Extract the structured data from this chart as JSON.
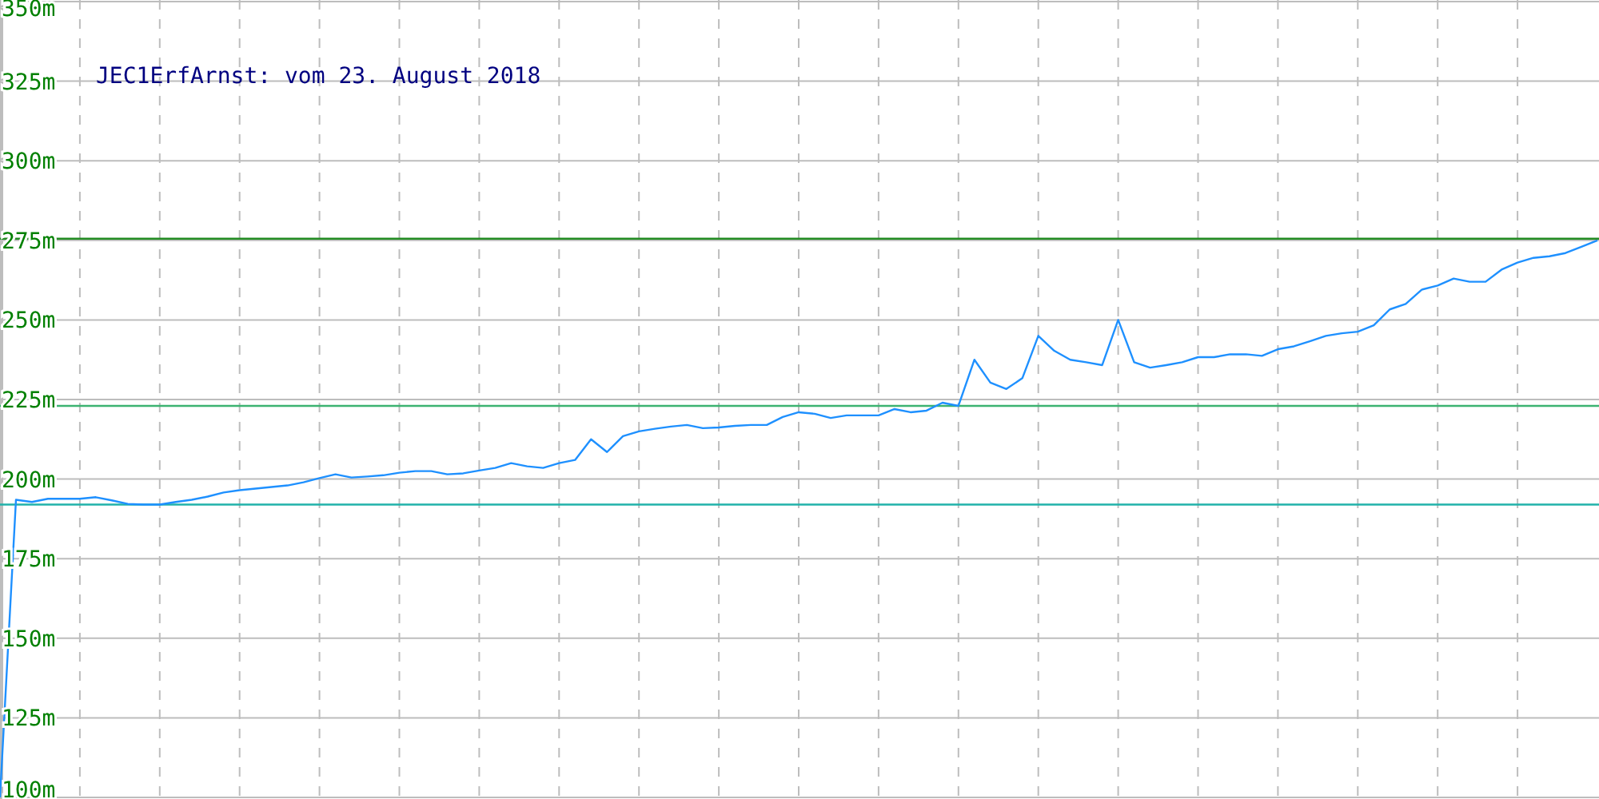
{
  "chart_data": {
    "type": "line",
    "title": "JEC1ErfArnst: vom 23. August 2018",
    "categories": [
      null,
      null,
      null,
      null,
      null,
      null,
      null,
      null,
      null,
      null,
      null,
      null,
      null,
      null,
      null,
      null,
      null,
      null,
      null,
      null,
      null,
      null,
      null,
      null,
      null,
      null,
      null,
      null,
      null,
      null,
      null,
      null,
      null,
      null,
      null,
      null,
      null,
      null,
      null,
      null,
      null,
      null,
      null,
      null,
      null,
      null,
      null,
      null,
      null,
      null,
      null,
      null,
      null,
      null,
      null,
      null,
      null,
      null,
      null,
      null,
      null,
      null,
      null,
      null,
      null,
      null,
      null,
      null,
      null,
      null,
      null,
      null,
      null,
      null,
      null,
      null,
      null,
      null,
      null,
      null,
      null,
      null,
      null,
      null,
      null,
      null,
      null,
      null,
      null,
      null,
      null,
      null,
      null,
      null,
      null,
      null,
      null,
      null,
      null,
      null,
      null
    ],
    "series": [
      {
        "color": "#1e90ff",
        "values": [
          100,
          193.5,
          192.8,
          193.8,
          193.8,
          193.8,
          194.3,
          193.3,
          192.2,
          192,
          192,
          192.8,
          193.5,
          194.5,
          195.8,
          196.5,
          197,
          197.5,
          198,
          199,
          200.3,
          201.5,
          200.5,
          200.8,
          201.2,
          202,
          202.5,
          202.5,
          201.5,
          201.8,
          202.7,
          203.5,
          205,
          204,
          203.5,
          205,
          206,
          212.5,
          208.5,
          213.5,
          215,
          215.8,
          216.5,
          217,
          216,
          216.2,
          216.7,
          217,
          217,
          219.5,
          221,
          220.5,
          219.2,
          220,
          220,
          220,
          222,
          221,
          221.5,
          224,
          223,
          237.5,
          230.3,
          228.3,
          231.7,
          245,
          240.3,
          237.5,
          236.7,
          235.8,
          250,
          236.7,
          235,
          235.8,
          236.7,
          238.3,
          238.3,
          239.2,
          239.2,
          238.7,
          240.8,
          241.7,
          243.3,
          245,
          245.8,
          246.3,
          248.3,
          253.3,
          255,
          259.5,
          260.8,
          263,
          262,
          262,
          265.8,
          268,
          269.5,
          270,
          271,
          273,
          275
        ]
      }
    ],
    "ylim": [
      100,
      350
    ],
    "yticks": [
      {
        "value": 100,
        "label": "100m"
      },
      {
        "value": 125,
        "label": "125m"
      },
      {
        "value": 150,
        "label": "150m"
      },
      {
        "value": 175,
        "label": "175m"
      },
      {
        "value": 200,
        "label": "200m"
      },
      {
        "value": 225,
        "label": "225m"
      },
      {
        "value": 250,
        "label": "250m"
      },
      {
        "value": 275,
        "label": "275m"
      },
      {
        "value": 300,
        "label": "300m"
      },
      {
        "value": 325,
        "label": "325m"
      },
      {
        "value": 350,
        "label": "350m"
      }
    ],
    "grid": true,
    "ref_lines": [
      {
        "axis": "y",
        "value": 275.5,
        "color": "#228b22"
      },
      {
        "axis": "y",
        "value": 223,
        "color": "#3cb371"
      },
      {
        "axis": "y",
        "value": 192,
        "color": "#20b2aa"
      }
    ]
  }
}
